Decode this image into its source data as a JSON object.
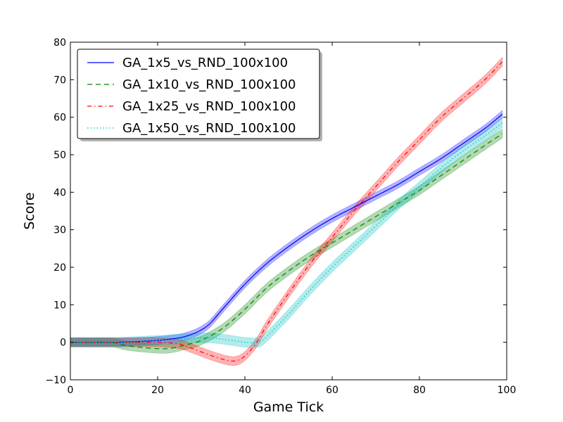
{
  "chart_data": {
    "type": "line",
    "title": "",
    "xlabel": "Game Tick",
    "ylabel": "Score",
    "xlim": [
      0,
      100
    ],
    "ylim": [
      -10,
      80
    ],
    "xticks": [
      0,
      20,
      40,
      60,
      80,
      100
    ],
    "yticks": [
      -10,
      0,
      10,
      20,
      30,
      40,
      50,
      60,
      70,
      80
    ],
    "grid": false,
    "legend_position": "top-left",
    "series": [
      {
        "name": "GA_1x5_vs_RND_100x100",
        "color": "#0000ff",
        "dash": "solid",
        "band": 1.0,
        "points": [
          [
            0,
            0
          ],
          [
            10,
            0
          ],
          [
            15,
            0.2
          ],
          [
            20,
            0.5
          ],
          [
            25,
            1.2
          ],
          [
            28,
            2.2
          ],
          [
            30,
            3.3
          ],
          [
            32,
            5
          ],
          [
            35,
            9
          ],
          [
            40,
            15.5
          ],
          [
            45,
            21
          ],
          [
            50,
            25.5
          ],
          [
            55,
            29.5
          ],
          [
            60,
            33
          ],
          [
            65,
            36
          ],
          [
            70,
            39
          ],
          [
            75,
            42
          ],
          [
            80,
            45.5
          ],
          [
            85,
            49
          ],
          [
            90,
            53
          ],
          [
            95,
            57
          ],
          [
            99,
            60.8
          ]
        ]
      },
      {
        "name": "GA_1x10_vs_RND_100x100",
        "color": "#008000",
        "dash": "dashed",
        "band": 1.2,
        "points": [
          [
            0,
            0
          ],
          [
            9,
            0
          ],
          [
            12,
            -0.7
          ],
          [
            15,
            -1.2
          ],
          [
            20,
            -1.7
          ],
          [
            23,
            -1.6
          ],
          [
            26,
            -0.8
          ],
          [
            30,
            0.5
          ],
          [
            35,
            3.8
          ],
          [
            40,
            8.8
          ],
          [
            45,
            14.5
          ],
          [
            50,
            19
          ],
          [
            55,
            23
          ],
          [
            60,
            26.5
          ],
          [
            65,
            30
          ],
          [
            70,
            33.5
          ],
          [
            75,
            37
          ],
          [
            80,
            40.5
          ],
          [
            85,
            44.5
          ],
          [
            90,
            48.5
          ],
          [
            95,
            52.5
          ],
          [
            99,
            55.6
          ]
        ]
      },
      {
        "name": "GA_1x25_vs_RND_100x100",
        "color": "#ff0000",
        "dash": "dashdot",
        "band": 1.2,
        "points": [
          [
            0,
            0
          ],
          [
            10,
            0
          ],
          [
            20,
            0
          ],
          [
            25,
            -0.5
          ],
          [
            28,
            -1.7
          ],
          [
            31,
            -3
          ],
          [
            34,
            -4.2
          ],
          [
            37,
            -5
          ],
          [
            39,
            -4.5
          ],
          [
            41,
            -2.5
          ],
          [
            43,
            0.5
          ],
          [
            45,
            4.5
          ],
          [
            50,
            13
          ],
          [
            55,
            21
          ],
          [
            60,
            28
          ],
          [
            65,
            35
          ],
          [
            70,
            41.5
          ],
          [
            75,
            48
          ],
          [
            80,
            54
          ],
          [
            85,
            60
          ],
          [
            90,
            65
          ],
          [
            95,
            70
          ],
          [
            99,
            74.8
          ]
        ]
      },
      {
        "name": "GA_1x50_vs_RND_100x100",
        "color": "#00bfbf",
        "dash": "dotted",
        "band": 1.3,
        "points": [
          [
            0,
            0
          ],
          [
            10,
            0
          ],
          [
            20,
            0.5
          ],
          [
            30,
            1.2
          ],
          [
            35,
            0.8
          ],
          [
            40,
            0
          ],
          [
            43,
            0
          ],
          [
            45,
            1.5
          ],
          [
            50,
            7.5
          ],
          [
            55,
            14
          ],
          [
            60,
            20
          ],
          [
            65,
            25.5
          ],
          [
            70,
            31
          ],
          [
            75,
            36.5
          ],
          [
            80,
            41.5
          ],
          [
            85,
            46.5
          ],
          [
            90,
            51
          ],
          [
            95,
            55
          ],
          [
            99,
            58.5
          ]
        ]
      }
    ]
  }
}
